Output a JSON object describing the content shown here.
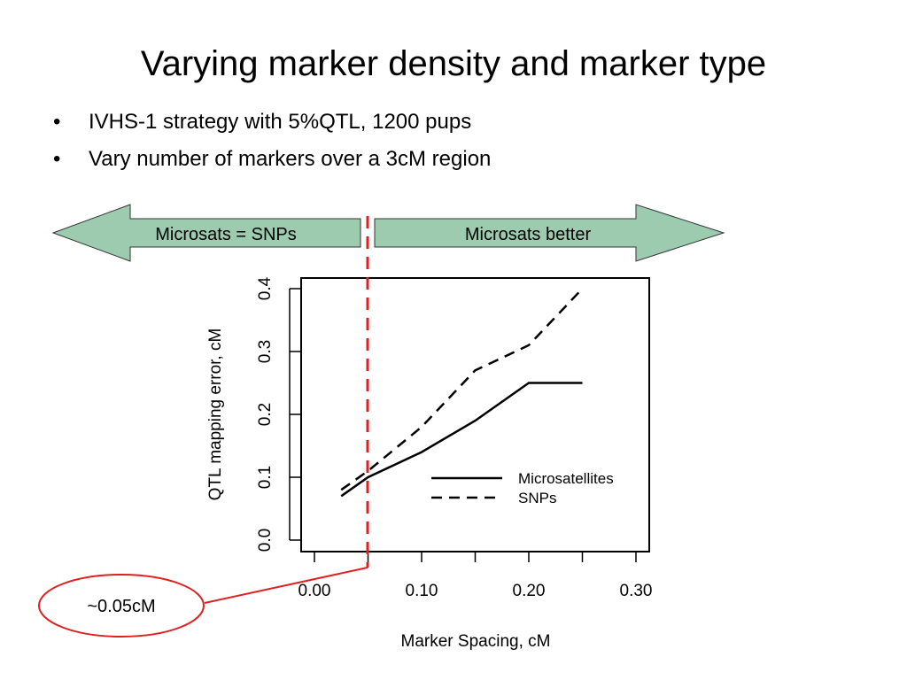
{
  "slide": {
    "title": "Varying marker density and marker type",
    "bullets": [
      "IVHS-1 strategy with 5%QTL, 1200 pups",
      "Vary number of markers over a 3cM region"
    ],
    "bullet_symbol": "•"
  },
  "arrows": {
    "left_label": "Microsats = SNPs",
    "right_label": "Microsats better",
    "fill_color": "#9ccbb0"
  },
  "callout": {
    "label": "~0.05cM",
    "color": "#e02020"
  },
  "chart_data": {
    "type": "line",
    "title": "",
    "xlabel": "Marker Spacing, cM",
    "ylabel": "QTL mapping error, cM",
    "xlim": [
      0.0,
      0.3
    ],
    "ylim": [
      0.0,
      0.4
    ],
    "xticks": [
      "0.00",
      "0.10",
      "0.20",
      "0.30"
    ],
    "yticks": [
      "0.0",
      "0.1",
      "0.2",
      "0.3",
      "0.4"
    ],
    "legend_position": "bottom-right",
    "reference_line_x": 0.05,
    "series": [
      {
        "name": "Microsatellites",
        "style": "solid",
        "x": [
          0.025,
          0.05,
          0.1,
          0.15,
          0.2,
          0.25
        ],
        "y": [
          0.07,
          0.1,
          0.14,
          0.19,
          0.25,
          0.25
        ]
      },
      {
        "name": "SNPs",
        "style": "dashed",
        "x": [
          0.025,
          0.05,
          0.1,
          0.15,
          0.2,
          0.25
        ],
        "y": [
          0.08,
          0.11,
          0.18,
          0.27,
          0.31,
          0.4
        ]
      }
    ]
  }
}
